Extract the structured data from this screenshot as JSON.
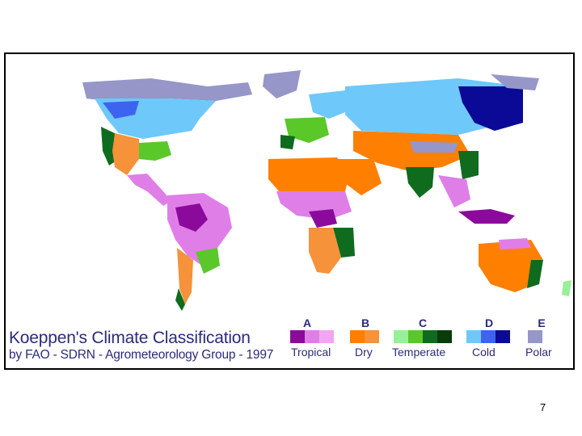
{
  "slide": {
    "page_number": "7"
  },
  "figure": {
    "title": "Koeppen's Climate Classification",
    "subtitle": "by FAO - SDRN - Agrometeorology Group - 1997"
  },
  "legend": [
    {
      "letter": "A",
      "name": "Tropical",
      "colors": [
        "#8b0a9c",
        "#e07ee8",
        "#f2a6f2"
      ]
    },
    {
      "letter": "B",
      "name": "Dry",
      "colors": [
        "#ff7f00",
        "#f5923a"
      ]
    },
    {
      "letter": "C",
      "name": "Temperate",
      "colors": [
        "#96f096",
        "#5ac828",
        "#0f6b1e",
        "#0a3c0a"
      ]
    },
    {
      "letter": "D",
      "name": "Cold",
      "colors": [
        "#6ec8fa",
        "#3c64f0",
        "#0a0a96"
      ]
    },
    {
      "letter": "E",
      "name": "Polar",
      "colors": [
        "#9696c8"
      ]
    }
  ]
}
